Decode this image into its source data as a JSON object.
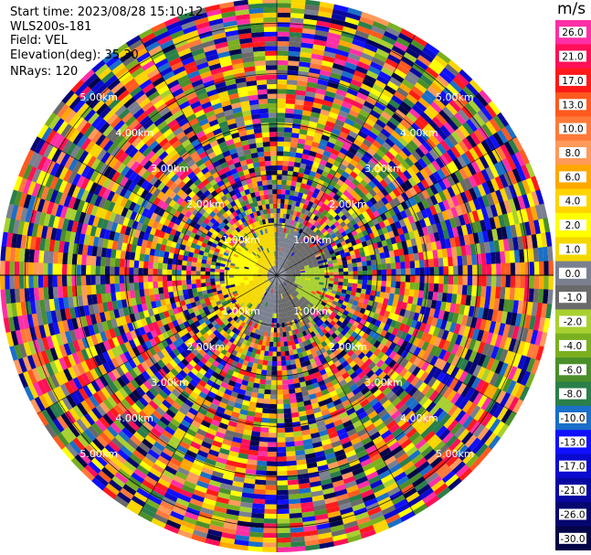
{
  "header": {
    "start_time": "Start time: 2023/08/28 15:10:12",
    "instrument": "WLS200s-181",
    "field": "Field: VEL",
    "elevation": "Elevation(deg): 35.30",
    "nrays": "NRays: 120"
  },
  "colorbar": {
    "unit": "m/s",
    "levels": [
      {
        "label": "26.0",
        "color": "#ff2fa6"
      },
      {
        "label": "21.0",
        "color": "#ff1057"
      },
      {
        "label": "17.0",
        "color": "#ff1a1a"
      },
      {
        "label": "13.0",
        "color": "#ff5a1f"
      },
      {
        "label": "10.0",
        "color": "#ff7a3a"
      },
      {
        "label": "8.0",
        "color": "#ff9a5a"
      },
      {
        "label": "6.0",
        "color": "#ffa800"
      },
      {
        "label": "4.0",
        "color": "#ffd400"
      },
      {
        "label": "2.0",
        "color": "#ffff00"
      },
      {
        "label": "1.0",
        "color": "#f5d800"
      },
      {
        "label": "0.0",
        "color": "#7a8090"
      },
      {
        "label": "-1.0",
        "color": "#6a6a6a"
      },
      {
        "label": "-2.0",
        "color": "#a8d030"
      },
      {
        "label": "-4.0",
        "color": "#7ab020"
      },
      {
        "label": "-6.0",
        "color": "#4a8f2a"
      },
      {
        "label": "-8.0",
        "color": "#2a7f4a"
      },
      {
        "label": "-10.0",
        "color": "#1a6fc8"
      },
      {
        "label": "-13.0",
        "color": "#1010ff"
      },
      {
        "label": "-17.0",
        "color": "#0a0ad0"
      },
      {
        "label": "-21.0",
        "color": "#0808a0"
      },
      {
        "label": "-26.0",
        "color": "#060670"
      },
      {
        "label": "-30.0",
        "color": "#040448"
      }
    ]
  },
  "chart_data": {
    "type": "heatmap",
    "projection": "polar",
    "field": "VEL",
    "elevation_deg": 35.3,
    "n_rays": 120,
    "range_rings_km": [
      1.0,
      2.0,
      3.0,
      4.0,
      5.0
    ],
    "range_ring_labels": [
      "1.00km",
      "2.00km",
      "3.00km",
      "4.00km",
      "5.00km"
    ],
    "label_azimuths_deg": [
      315,
      45,
      135,
      225
    ],
    "near_field": {
      "max_range_km": 0.7,
      "pattern": "smooth dipole",
      "positive_side": "west-south (yellow, ~1-2 m/s)",
      "negative_side": "east (green, ~-1 to -2 m/s)",
      "center": "grey (~0 m/s)"
    },
    "far_field": "noise: random colors spanning full scale",
    "max_range_km": 5.5
  }
}
